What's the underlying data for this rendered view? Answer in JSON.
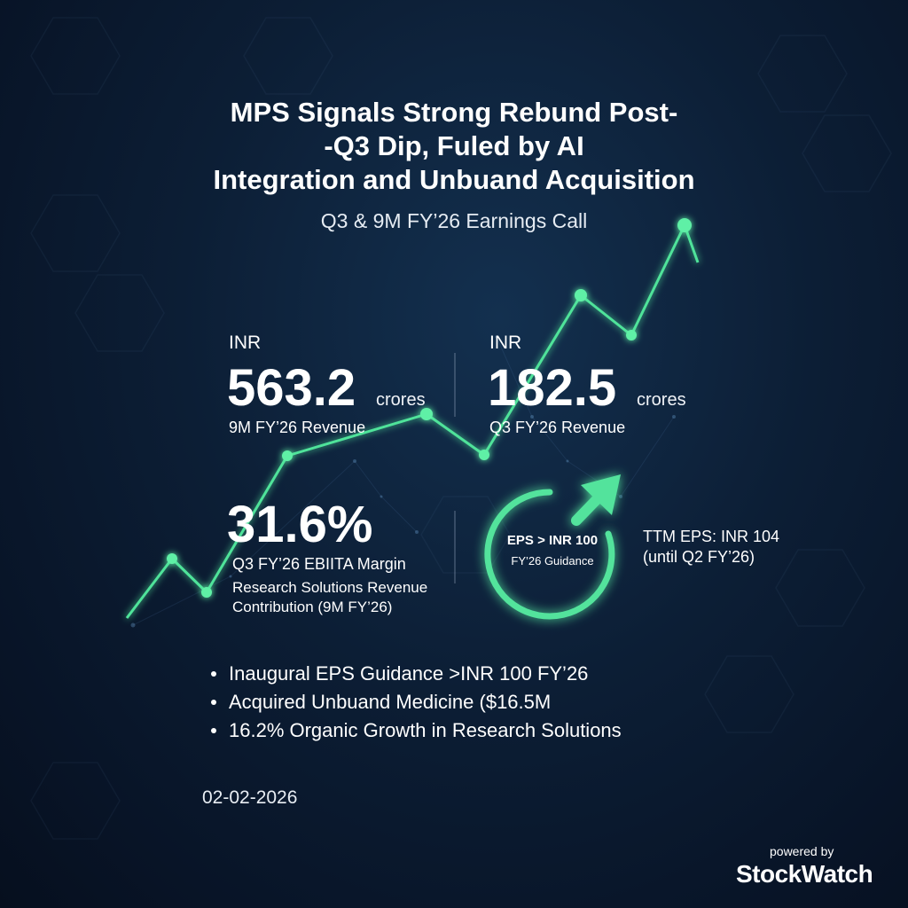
{
  "header": {
    "title_lines": [
      "MPS Signals Strong Rebund Post-",
      "-Q3 Dip, Fuled by AI",
      "Integration and Unbuand Acquisition"
    ],
    "subtitle": "Q3 & 9M FY’26 Earnings Call"
  },
  "metrics": {
    "revenue_9m": {
      "currency": "INR",
      "value": "563.2",
      "unit": "crores",
      "caption": "9M FY’26 Revenue"
    },
    "revenue_q3": {
      "currency": "INR",
      "value": "182.5",
      "unit": "crores",
      "caption": "Q3 FY’26 Revenue"
    },
    "margin": {
      "value": "31.6%",
      "caption": "Q3 FY’26 EBIITA Margin",
      "sub_caption_lines": [
        "Research Solutions Revenue",
        "Contribution (9M FY’26)"
      ]
    },
    "eps_guidance": {
      "label": "EPS > INR 100",
      "sub_label": "FY’26 Guidance"
    },
    "ttm_eps": {
      "lines": [
        "TTM EPS: INR 104",
        "(until Q2 FY’26)"
      ]
    }
  },
  "bullets": [
    "Inaugural EPS Guidance >INR 100 FY’26",
    "Acquired Unbuand Medicine ($16.5M",
    "16.2% Organic Growth in Research Solutions"
  ],
  "footer": {
    "date": "02-02-2026",
    "powered_by": "powered by",
    "brand": "StockWatch"
  },
  "colors": {
    "accent": "#4fe39a",
    "background": "#0c1e35"
  }
}
